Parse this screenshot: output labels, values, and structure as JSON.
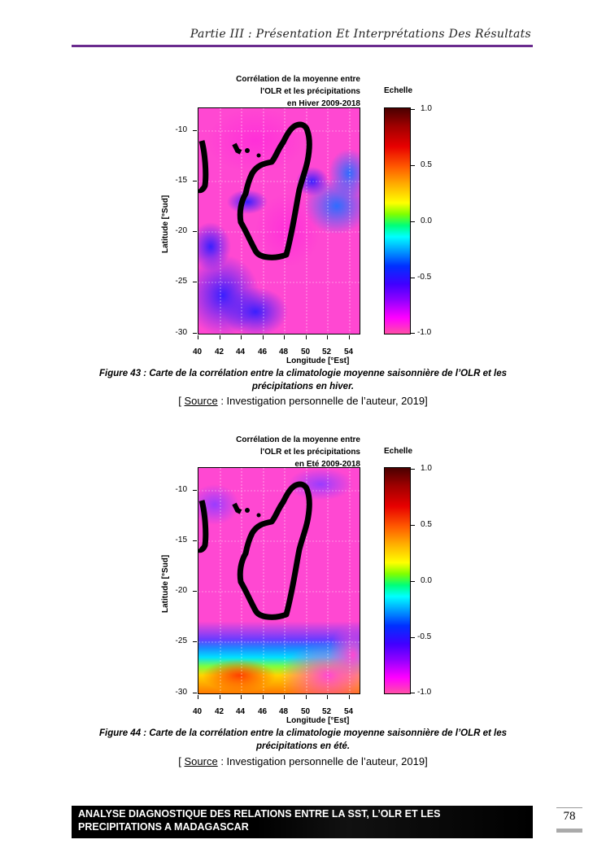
{
  "header": {
    "title": "Partie III : Présentation Et Interprétations Des Résultats"
  },
  "figures": [
    {
      "title_lines": [
        "Corrélation de la moyenne entre",
        "l'OLR et les précipitations",
        "en Hiver 2009-2018"
      ],
      "scale_title": "Echelle",
      "colorbar_labels": [
        "1.0",
        "0.5",
        "0.0",
        "-0.5",
        "-1.0"
      ],
      "y_ticks": [
        "-10",
        "-15",
        "-20",
        "-25",
        "-30"
      ],
      "x_ticks": [
        "40",
        "42",
        "44",
        "46",
        "48",
        "50",
        "52",
        "54"
      ],
      "xlabel": "Longitude [°Est]",
      "ylabel": "Latitude [°Sud]",
      "caption": "Figure 43 : Carte de la corrélation entre la climatologie moyenne saisonnière de l’OLR et les précipitations en hiver.",
      "source_label": "Source",
      "source_text": " : Investigation personnelle de l’auteur, 2019]",
      "source_open": "[ "
    },
    {
      "title_lines": [
        "Corrélation de la moyenne entre",
        "l'OLR et les précipitations",
        "en Eté 2009-2018"
      ],
      "scale_title": "Echelle",
      "colorbar_labels": [
        "1.0",
        "0.5",
        "0.0",
        "-0.5",
        "-1.0"
      ],
      "y_ticks": [
        "-10",
        "-15",
        "-20",
        "-25",
        "-30"
      ],
      "x_ticks": [
        "40",
        "42",
        "44",
        "46",
        "48",
        "50",
        "52",
        "54"
      ],
      "xlabel": "Longitude [°Est]",
      "ylabel": "Latitude [°Sud]",
      "caption": "Figure 44 : Carte de la corrélation entre la climatologie moyenne saisonnière de l’OLR et les précipitations en été.",
      "source_label": "Source",
      "source_text": " : Investigation personnelle de l’auteur, 2019]",
      "source_open": "[ "
    }
  ],
  "footer": {
    "line1": "ANALYSE DIAGNOSTIQUE DES RELATIONS ENTRE LA SST, L’OLR ET LES",
    "line2": "PRECIPITATIONS A MADAGASCAR",
    "page_number": "78"
  },
  "colors": {
    "header_rule": "#6a2b8e",
    "footer_bg": "#000000"
  }
}
